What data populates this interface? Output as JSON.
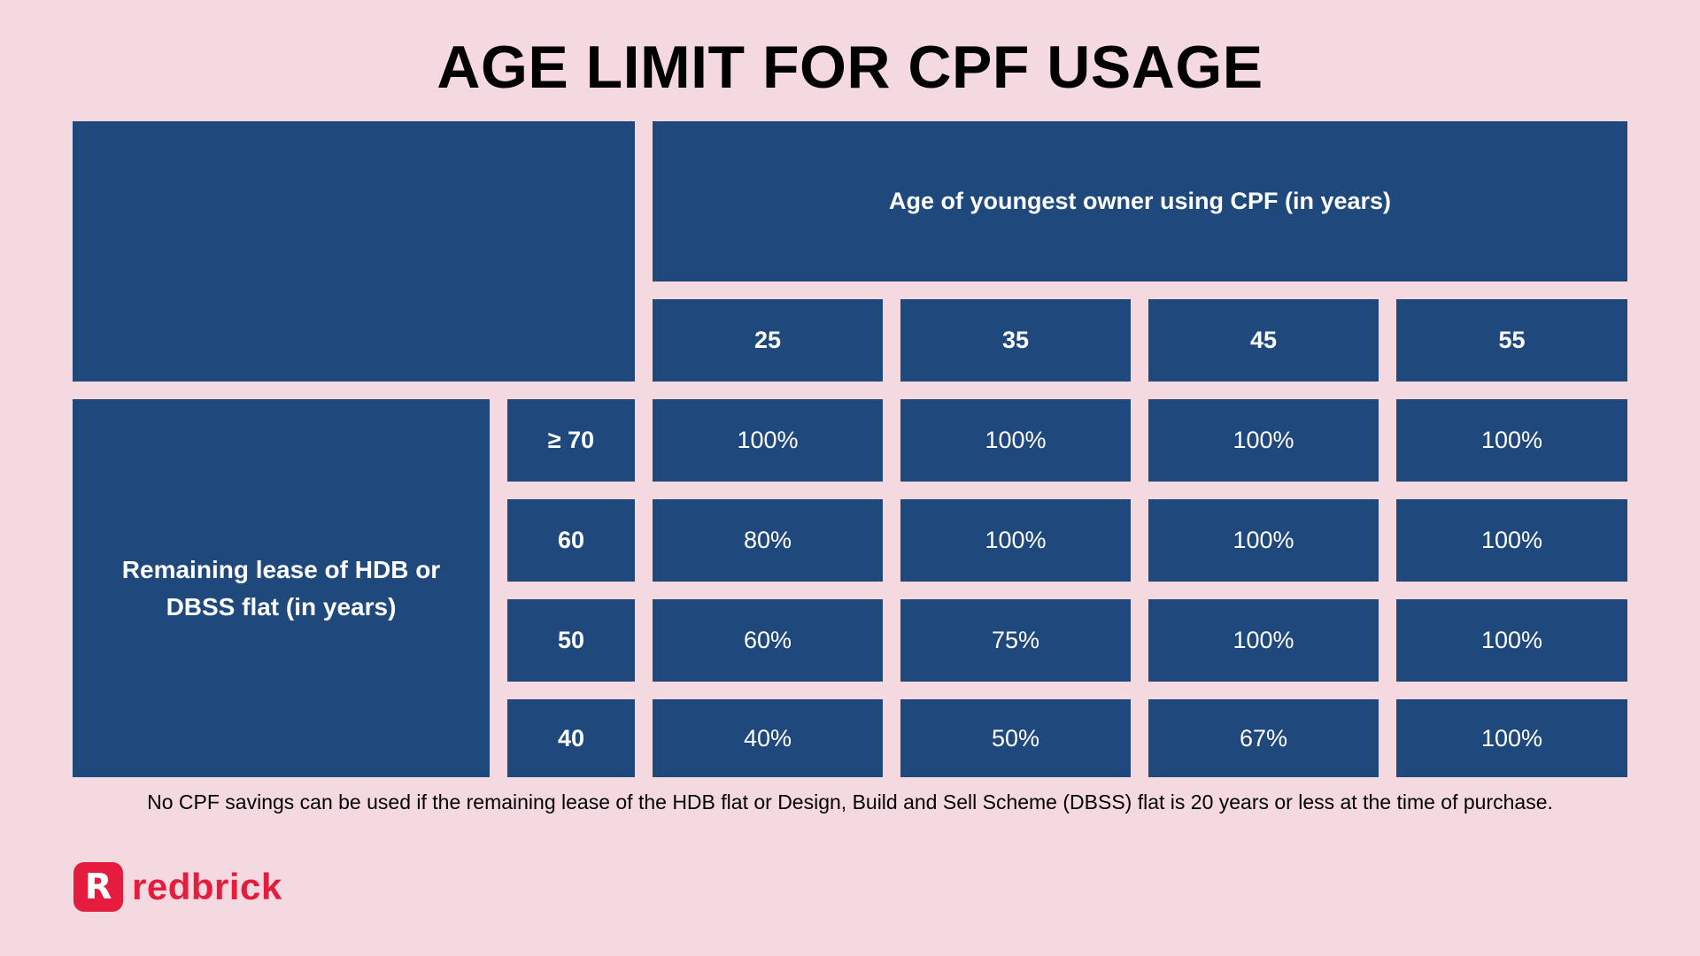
{
  "title": "AGE LIMIT FOR CPF USAGE",
  "table": {
    "column_group_header": "Age of youngest owner using CPF (in years)",
    "columns": [
      "25",
      "35",
      "45",
      "55"
    ],
    "row_group_header": "Remaining lease of HDB or DBSS flat (in years)",
    "rows": [
      {
        "label": "≥ 70",
        "values": [
          "100%",
          "100%",
          "100%",
          "100%"
        ]
      },
      {
        "label": "60",
        "values": [
          "80%",
          "100%",
          "100%",
          "100%"
        ]
      },
      {
        "label": "50",
        "values": [
          "60%",
          "75%",
          "100%",
          "100%"
        ]
      },
      {
        "label": "40",
        "values": [
          "40%",
          "50%",
          "67%",
          "100%"
        ]
      }
    ]
  },
  "footnote": "No CPF savings can be used if the remaining lease of the HDB flat or Design, Build and Sell Scheme (DBSS) flat is 20 years or less at the time of purchase.",
  "brand": {
    "mark_letter": "R",
    "name": "redbrick",
    "color": "#e41c3d"
  },
  "colors": {
    "background": "#f5d9e0",
    "cell": "#1f497d"
  }
}
